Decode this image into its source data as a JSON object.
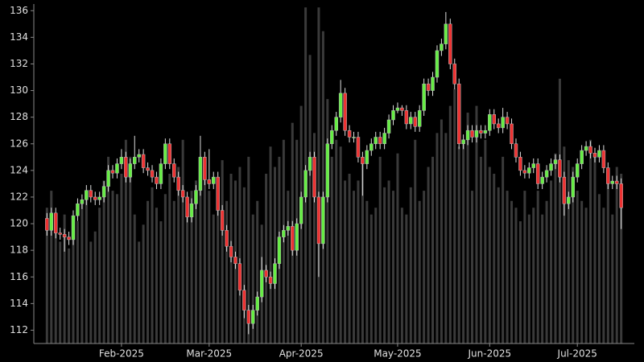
{
  "chart_data": {
    "type": "candlestick",
    "up_color": "#66ee44",
    "down_color": "#ee3333",
    "wick_color": "#dddddd",
    "volume_color": "#3a3a3a",
    "ylim": [
      111,
      136.5
    ],
    "yticks": [
      112,
      114,
      116,
      118,
      120,
      122,
      124,
      126,
      128,
      130,
      132,
      134,
      136
    ],
    "xlim": [
      -3,
      134
    ],
    "xticks": [
      {
        "value": 17,
        "label": "Feb-2025"
      },
      {
        "value": 37,
        "label": "Mar-2025"
      },
      {
        "value": 58,
        "label": "Apr-2025"
      },
      {
        "value": 80,
        "label": "May-2025"
      },
      {
        "value": 101,
        "label": "Jun-2025"
      },
      {
        "value": 121,
        "label": "Jul-2025"
      }
    ],
    "volume_ylim": [
      0,
      100
    ],
    "open": [
      120.4,
      119.5,
      120.8,
      119.3,
      119.2,
      119,
      118.8,
      120.6,
      121.5,
      121.8,
      122.5,
      122,
      121.8,
      122,
      122.8,
      124,
      123.8,
      124.5,
      125,
      123.5,
      124.5,
      125,
      125.2,
      124.2,
      124,
      123.5,
      123,
      124.5,
      126,
      124.5,
      123.5,
      122.5,
      122,
      120.5,
      121.5,
      122.5,
      125,
      123.3,
      123,
      123.5,
      121,
      119.5,
      118.3,
      117.5,
      117,
      115,
      113.5,
      112.5,
      113.5,
      114.5,
      116.5,
      116,
      115.5,
      117,
      119,
      119.5,
      119.8,
      118,
      120,
      122,
      124,
      125,
      122,
      118.5,
      122,
      126,
      127,
      128,
      129.8,
      127,
      126.5,
      126.5,
      125,
      124.5,
      125.5,
      126,
      126.5,
      126,
      126.8,
      127.8,
      128.5,
      128.7,
      128.5,
      127.5,
      128,
      127.3,
      128.5,
      130.5,
      130,
      131,
      133,
      133.5,
      135,
      132,
      130.5,
      126,
      126.3,
      127,
      126.5,
      127,
      126.8,
      127,
      128.2,
      127.5,
      127.2,
      128,
      127.5,
      126,
      125,
      124,
      123.8,
      124.2,
      124.5,
      123,
      123.5,
      124,
      124.5,
      124.8,
      123.5,
      121.5,
      122,
      123.5,
      124.5,
      125.5,
      125.8,
      125.3,
      125,
      125.5,
      124.2,
      123,
      123.2,
      123
    ],
    "high": [
      120.8,
      121.2,
      121.2,
      119.7,
      119.6,
      119.4,
      121,
      121.9,
      122.2,
      122.9,
      122.9,
      122.4,
      122.4,
      123.2,
      124.4,
      124.4,
      124.9,
      125.6,
      125.4,
      124.9,
      126.6,
      125.6,
      125.6,
      124.6,
      124.4,
      123.9,
      124.9,
      126.4,
      126.4,
      124.9,
      123.9,
      122.9,
      122.4,
      121.9,
      122.9,
      126.6,
      125.4,
      125.6,
      123.9,
      123.9,
      121.4,
      119.9,
      118.7,
      117.9,
      117.4,
      115.4,
      113.9,
      113.9,
      114.9,
      117.5,
      116.9,
      116.4,
      117.4,
      119.4,
      119.9,
      120.2,
      120.2,
      120.4,
      122.4,
      124.4,
      125.4,
      125.4,
      122.4,
      122.4,
      126.4,
      127.4,
      128.4,
      130.8,
      130.2,
      127.4,
      126.9,
      126.9,
      125.4,
      125.9,
      126.4,
      126.9,
      126.9,
      127.2,
      128.2,
      128.9,
      129.1,
      128.9,
      128.9,
      128.4,
      128.4,
      128.9,
      130.9,
      130.9,
      131.4,
      133.4,
      133.9,
      135.9,
      135.4,
      132.4,
      130.9,
      126.7,
      127.4,
      127.4,
      127.4,
      127.4,
      127.4,
      128.6,
      128.6,
      127.9,
      128.7,
      128.4,
      127.9,
      126.4,
      125.4,
      124.4,
      124.6,
      124.9,
      124.9,
      123.9,
      124.4,
      124.9,
      125.2,
      125.2,
      123.9,
      122.4,
      123.9,
      124.9,
      125.9,
      126.2,
      126.2,
      125.7,
      125.9,
      125.9,
      124.6,
      123.6,
      123.6,
      123.4
    ],
    "low": [
      119.1,
      119.1,
      118.9,
      118.8,
      117.9,
      118.4,
      118.4,
      120.2,
      121.1,
      121.4,
      121.6,
      121.4,
      121.4,
      121.6,
      122.4,
      123.4,
      123.4,
      124.1,
      123.1,
      123.1,
      124.1,
      124.6,
      123.8,
      123.6,
      123.1,
      122.6,
      122.6,
      124.1,
      124.1,
      123.1,
      122.1,
      121.6,
      120.1,
      120.1,
      121.1,
      122.1,
      122.9,
      122.6,
      122.6,
      120.6,
      119.1,
      117.9,
      117.1,
      116.6,
      114.6,
      112.9,
      111.7,
      112.1,
      113.1,
      114.1,
      115.6,
      115.1,
      115.1,
      116.6,
      118.6,
      119.1,
      117.6,
      117.6,
      119.6,
      121.6,
      123.6,
      121.6,
      116,
      118.1,
      121.6,
      125.6,
      126.6,
      127.6,
      126.6,
      126.1,
      126.1,
      124.6,
      122.1,
      124.1,
      125.1,
      125.6,
      125.6,
      125.6,
      126.4,
      127.4,
      128.3,
      128.1,
      127.1,
      127.1,
      126.9,
      126.9,
      128.1,
      129.6,
      129.6,
      130.6,
      132.6,
      133.1,
      131.6,
      130.1,
      125.6,
      125.6,
      125.9,
      126.1,
      126.1,
      126.4,
      126.4,
      126.6,
      127.1,
      126.8,
      126.8,
      127.1,
      125.6,
      124.6,
      123.6,
      123.4,
      123.4,
      123.8,
      122.6,
      122.6,
      123.1,
      123.6,
      124.1,
      123.1,
      120.6,
      121.1,
      121.6,
      123.1,
      124.1,
      125.1,
      124.9,
      124.6,
      124.6,
      123.8,
      122.6,
      122.6,
      122.6,
      119.6
    ],
    "close": [
      119.5,
      120.8,
      119.3,
      119.2,
      119,
      118.8,
      120.6,
      121.5,
      121.8,
      122.5,
      122,
      121.8,
      122,
      122.8,
      124,
      123.8,
      124.5,
      125,
      123.5,
      124.5,
      125,
      125.2,
      124.2,
      124,
      123.5,
      123,
      124.5,
      126,
      124.5,
      123.5,
      122.5,
      122,
      120.5,
      121.5,
      122.5,
      125,
      123.3,
      123,
      123.5,
      121,
      119.5,
      118.3,
      117.5,
      117,
      115,
      113.5,
      112.5,
      113.5,
      114.5,
      116.5,
      116,
      115.5,
      117,
      119,
      119.5,
      119.8,
      118,
      120,
      122,
      124,
      125,
      122,
      118.5,
      122,
      126,
      127,
      128,
      129.8,
      127,
      126.5,
      126.5,
      125,
      124.5,
      125.5,
      126,
      126.5,
      126,
      126.8,
      127.8,
      128.5,
      128.7,
      128.5,
      127.5,
      128,
      127.3,
      128.5,
      130.5,
      130,
      131,
      133,
      133.5,
      135,
      132,
      130.5,
      126,
      126.3,
      127,
      126.5,
      127,
      126.8,
      127,
      128.2,
      127.5,
      127.2,
      128,
      127.5,
      126,
      125,
      124,
      123.8,
      124.2,
      124.5,
      123,
      123.5,
      124,
      124.5,
      124.8,
      123.5,
      121.5,
      122,
      123.5,
      124.5,
      125.5,
      125.8,
      125.3,
      125,
      125.5,
      124.2,
      123,
      123.2,
      123,
      121.2
    ],
    "volume": [
      40,
      45,
      35,
      30,
      38,
      28,
      32,
      36,
      42,
      45,
      30,
      33,
      40,
      48,
      55,
      45,
      44,
      50,
      60,
      55,
      38,
      30,
      35,
      42,
      46,
      40,
      36,
      44,
      50,
      42,
      52,
      60,
      40,
      45,
      48,
      55,
      50,
      45,
      38,
      46,
      54,
      42,
      50,
      48,
      52,
      46,
      55,
      38,
      42,
      35,
      50,
      58,
      52,
      55,
      60,
      45,
      65,
      60,
      70,
      99,
      85,
      62,
      99,
      92,
      72,
      55,
      60,
      58,
      48,
      50,
      45,
      48,
      55,
      42,
      38,
      40,
      55,
      46,
      48,
      45,
      56,
      40,
      38,
      46,
      60,
      42,
      45,
      52,
      55,
      62,
      66,
      62,
      70,
      75,
      58,
      60,
      68,
      45,
      70,
      55,
      60,
      52,
      50,
      46,
      55,
      45,
      42,
      40,
      36,
      45,
      38,
      40,
      45,
      38,
      42,
      48,
      56,
      78,
      58,
      54,
      52,
      45,
      42,
      40,
      60,
      55,
      44,
      40,
      48,
      38,
      52,
      50
    ]
  }
}
